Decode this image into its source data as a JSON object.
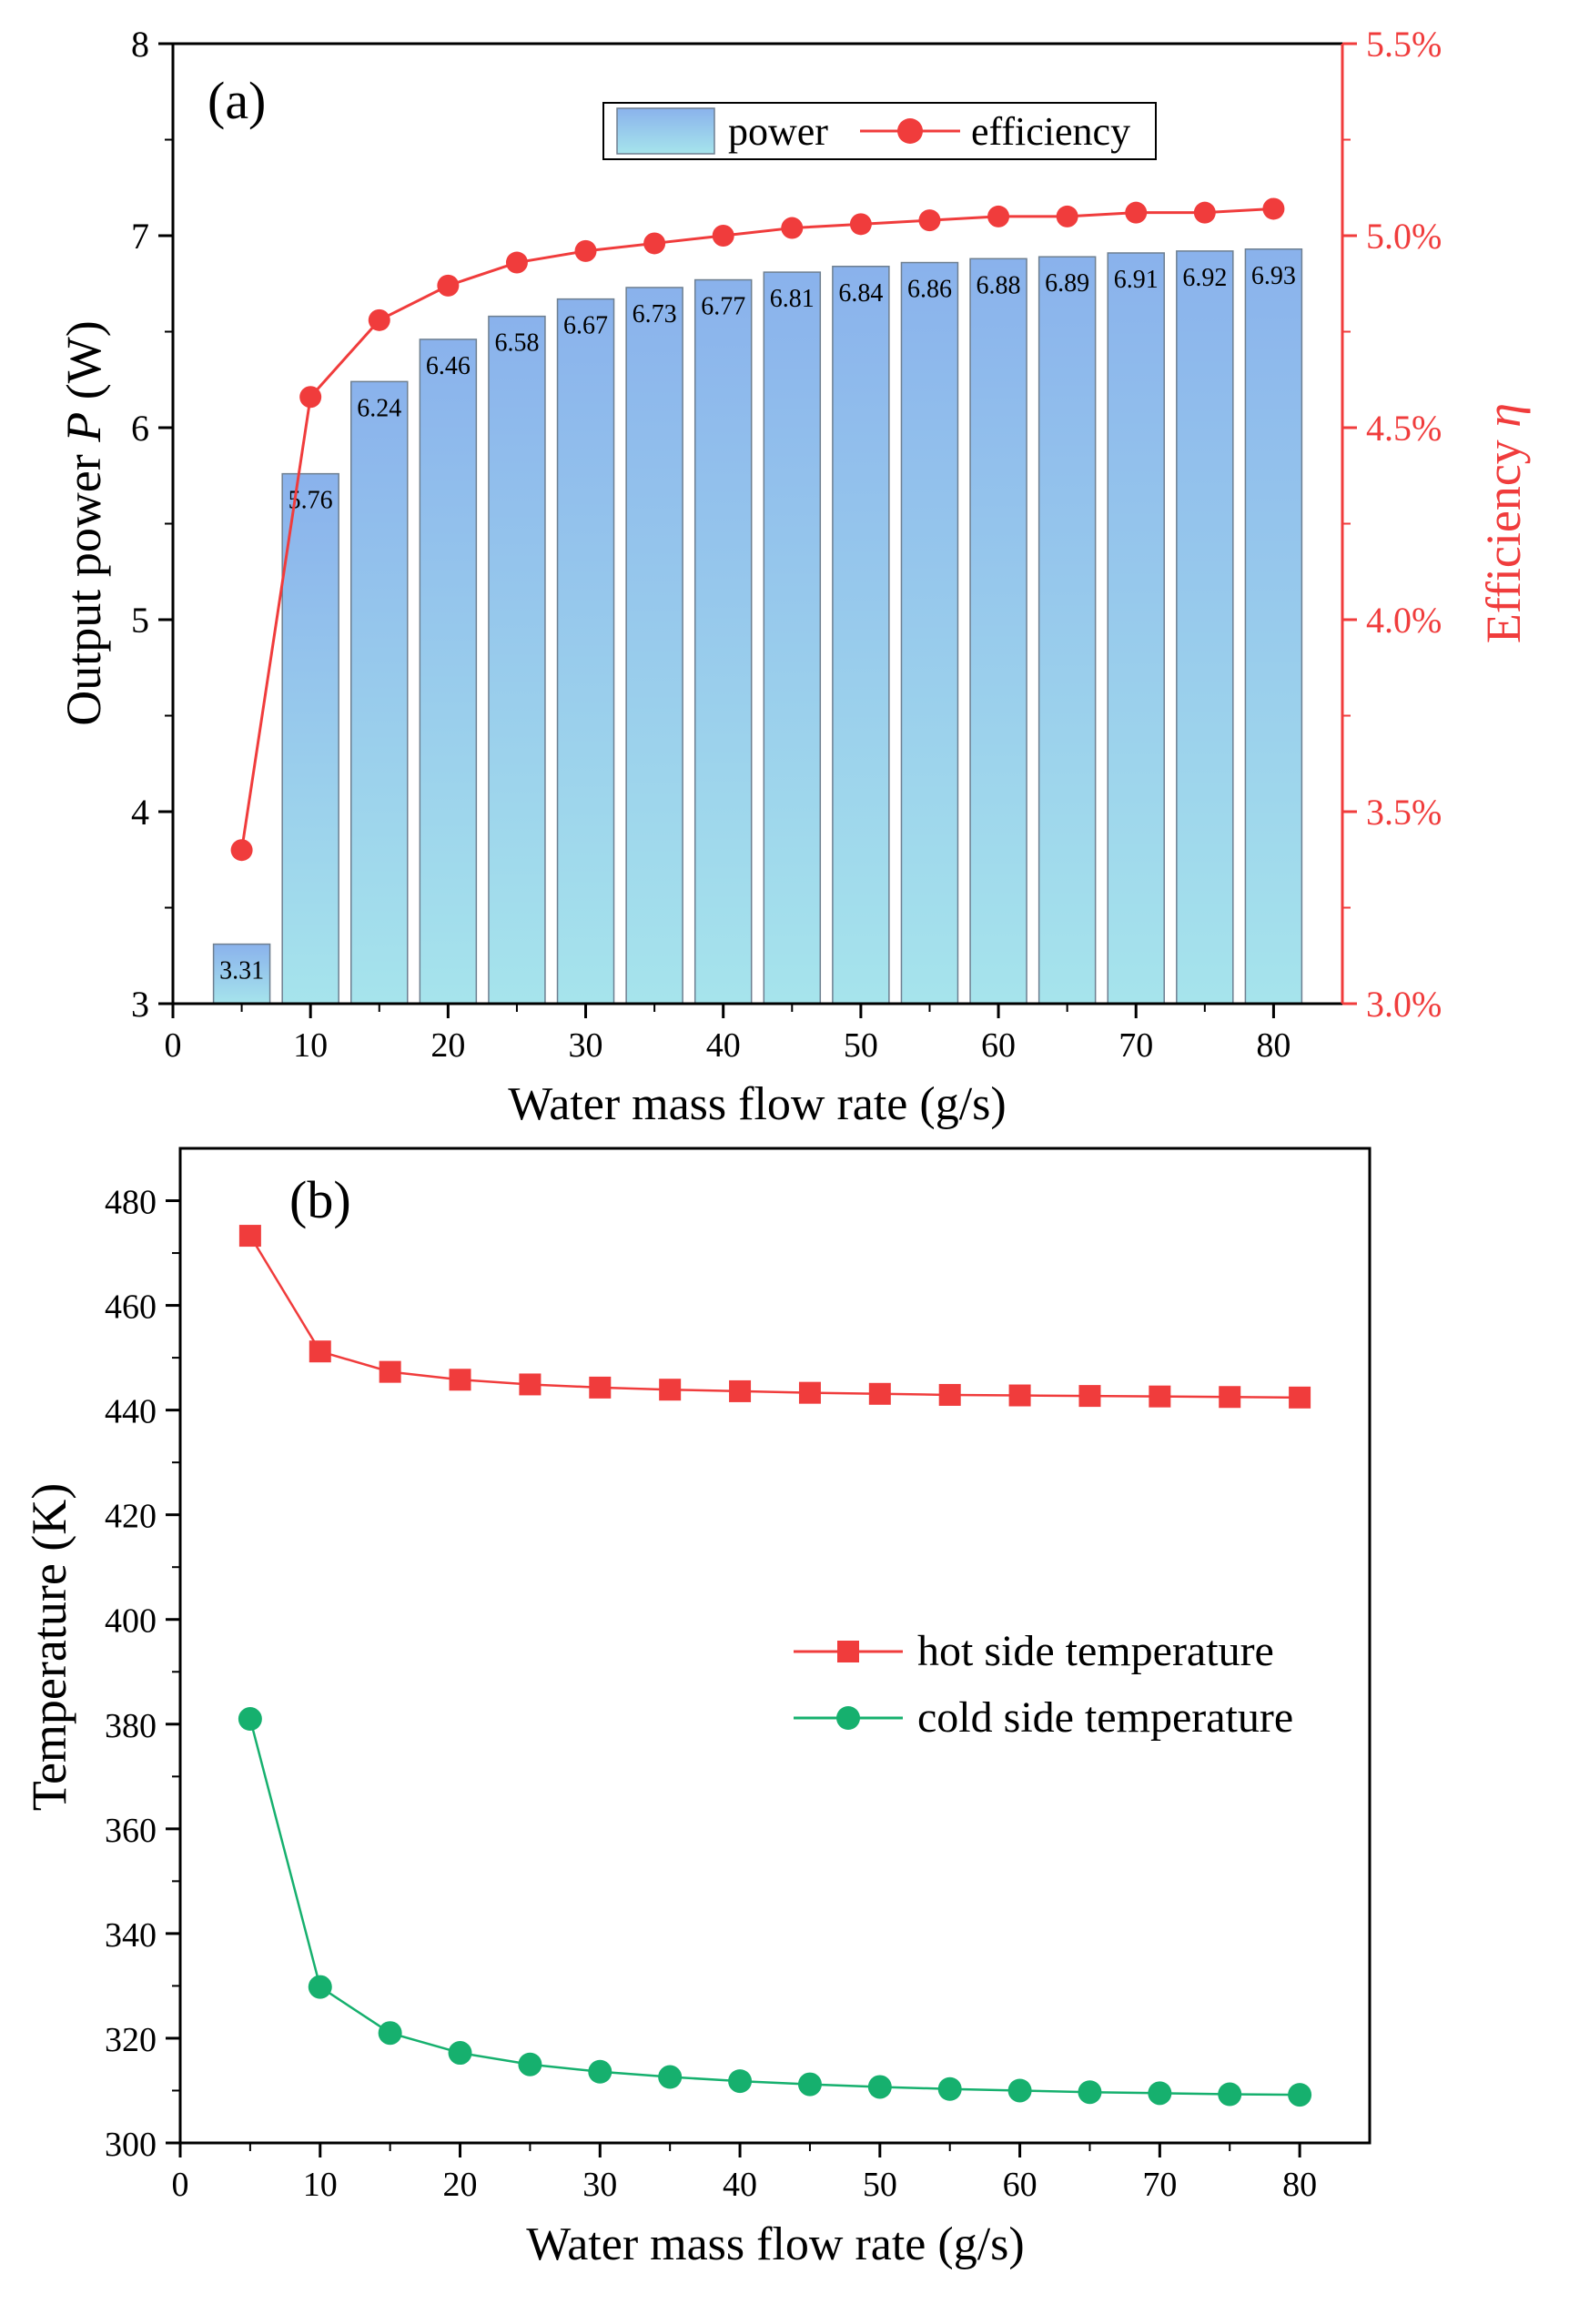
{
  "chart_data": [
    {
      "type": "bar",
      "panel_label": "(a)",
      "xlabel": "Water mass flow rate (g/s)",
      "ylabel_left": "Output power ",
      "ylabel_left_var": "P",
      "ylabel_left_unit": " (W)",
      "ylabel_right": "Efficiency ",
      "ylabel_right_var": "η",
      "xlim": [
        0,
        85
      ],
      "ylim_left": [
        3,
        8
      ],
      "ylim_right": [
        3.0,
        5.5
      ],
      "xticks": [
        0,
        10,
        20,
        30,
        40,
        50,
        60,
        70,
        80
      ],
      "yticks_left": [
        3,
        4,
        5,
        6,
        7,
        8
      ],
      "yticks_right": [
        "3.0%",
        "3.5%",
        "4.0%",
        "4.5%",
        "5.0%",
        "5.5%"
      ],
      "yticks_right_values": [
        3.0,
        3.5,
        4.0,
        4.5,
        5.0,
        5.5
      ],
      "legend": [
        "power",
        "efficiency"
      ],
      "x": [
        5,
        10,
        15,
        20,
        25,
        30,
        35,
        40,
        45,
        50,
        55,
        60,
        65,
        70,
        75,
        80
      ],
      "series": [
        {
          "name": "power",
          "axis": "left",
          "values": [
            3.31,
            5.76,
            6.24,
            6.46,
            6.58,
            6.67,
            6.73,
            6.77,
            6.81,
            6.84,
            6.86,
            6.88,
            6.89,
            6.91,
            6.92,
            6.93
          ],
          "labels": [
            "3.31",
            "5.76",
            "6.24",
            "6.46",
            "6.58",
            "6.67",
            "6.73",
            "6.77",
            "6.81",
            "6.84",
            "6.86",
            "6.88",
            "6.89",
            "6.91",
            "6.92",
            "6.93"
          ]
        },
        {
          "name": "efficiency",
          "axis": "right",
          "values": [
            3.4,
            4.58,
            4.78,
            4.87,
            4.93,
            4.96,
            4.98,
            5.0,
            5.02,
            5.03,
            5.04,
            5.05,
            5.05,
            5.06,
            5.06,
            5.07
          ]
        }
      ],
      "colors": {
        "efficiency": "#f03c3c",
        "bar_top": "#8ab2ec",
        "bar_bottom": "#a6e4ec",
        "right_axis": "#f03c3c"
      }
    },
    {
      "type": "line",
      "panel_label": "(b)",
      "xlabel": "Water mass flow rate (g/s)",
      "ylabel": "Temperature (K)",
      "xlim": [
        0,
        85
      ],
      "ylim": [
        300,
        490
      ],
      "xticks": [
        0,
        10,
        20,
        30,
        40,
        50,
        60,
        70,
        80
      ],
      "yticks": [
        300,
        320,
        340,
        360,
        380,
        400,
        420,
        440,
        460,
        480
      ],
      "x": [
        5,
        10,
        15,
        20,
        25,
        30,
        35,
        40,
        45,
        50,
        55,
        60,
        65,
        70,
        75,
        80
      ],
      "series": [
        {
          "name": "hot side temperature",
          "marker": "square",
          "values": [
            473.3,
            451.2,
            447.3,
            445.8,
            444.9,
            444.3,
            443.9,
            443.6,
            443.3,
            443.1,
            442.9,
            442.8,
            442.7,
            442.6,
            442.5,
            442.4
          ]
        },
        {
          "name": "cold side temperature",
          "marker": "circle",
          "values": [
            381.0,
            329.8,
            321.0,
            317.2,
            315.0,
            313.6,
            312.6,
            311.8,
            311.2,
            310.7,
            310.3,
            310.0,
            309.7,
            309.5,
            309.3,
            309.2
          ]
        }
      ],
      "colors": {
        "hot side temperature": "#f03c3c",
        "cold side temperature": "#16b06e"
      }
    }
  ]
}
